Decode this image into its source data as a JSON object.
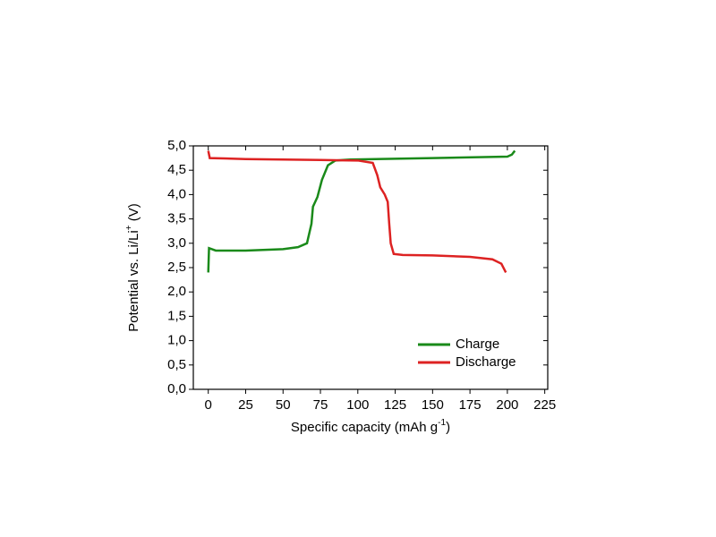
{
  "chart_data": {
    "type": "line",
    "xlabel": {
      "text": "Specific capacity (mAh g",
      "sup": "-1",
      "after": ")"
    },
    "ylabel": {
      "text": "Potential vs. Li/Li",
      "sup": "+",
      "after": " (V)"
    },
    "xlim": [
      -10,
      227
    ],
    "ylim": [
      0,
      5
    ],
    "xticks": [
      0,
      25,
      50,
      75,
      100,
      125,
      150,
      175,
      200,
      225
    ],
    "yticks": [
      {
        "value": 0,
        "label": "0,0"
      },
      {
        "value": 0.5,
        "label": "0,5"
      },
      {
        "value": 1,
        "label": "1,0"
      },
      {
        "value": 1.5,
        "label": "1,5"
      },
      {
        "value": 2,
        "label": "2,0"
      },
      {
        "value": 2.5,
        "label": "2,5"
      },
      {
        "value": 3,
        "label": "3,0"
      },
      {
        "value": 3.5,
        "label": "3,5"
      },
      {
        "value": 4,
        "label": "4,0"
      },
      {
        "value": 4.5,
        "label": "4,5"
      },
      {
        "value": 5,
        "label": "5,0"
      }
    ],
    "legend": "lower right",
    "series": [
      {
        "name": "Charge",
        "color": "#1a8a1a",
        "x": [
          0,
          0.5,
          5,
          25,
          50,
          60,
          66,
          69,
          70,
          73,
          76,
          80,
          85,
          95,
          150,
          200,
          203,
          205
        ],
        "values": [
          2.4,
          2.9,
          2.85,
          2.85,
          2.88,
          2.92,
          3.0,
          3.4,
          3.75,
          3.95,
          4.3,
          4.6,
          4.7,
          4.72,
          4.75,
          4.78,
          4.82,
          4.9
        ]
      },
      {
        "name": "Discharge",
        "color": "#dd2222",
        "x": [
          0,
          1,
          25,
          75,
          100,
          110,
          113,
          115,
          118,
          120,
          121,
          122,
          124,
          130,
          150,
          175,
          190,
          196,
          199
        ],
        "values": [
          4.9,
          4.75,
          4.73,
          4.71,
          4.7,
          4.65,
          4.4,
          4.15,
          4.0,
          3.85,
          3.4,
          3.0,
          2.78,
          2.76,
          2.75,
          2.72,
          2.67,
          2.58,
          2.4
        ]
      }
    ]
  }
}
